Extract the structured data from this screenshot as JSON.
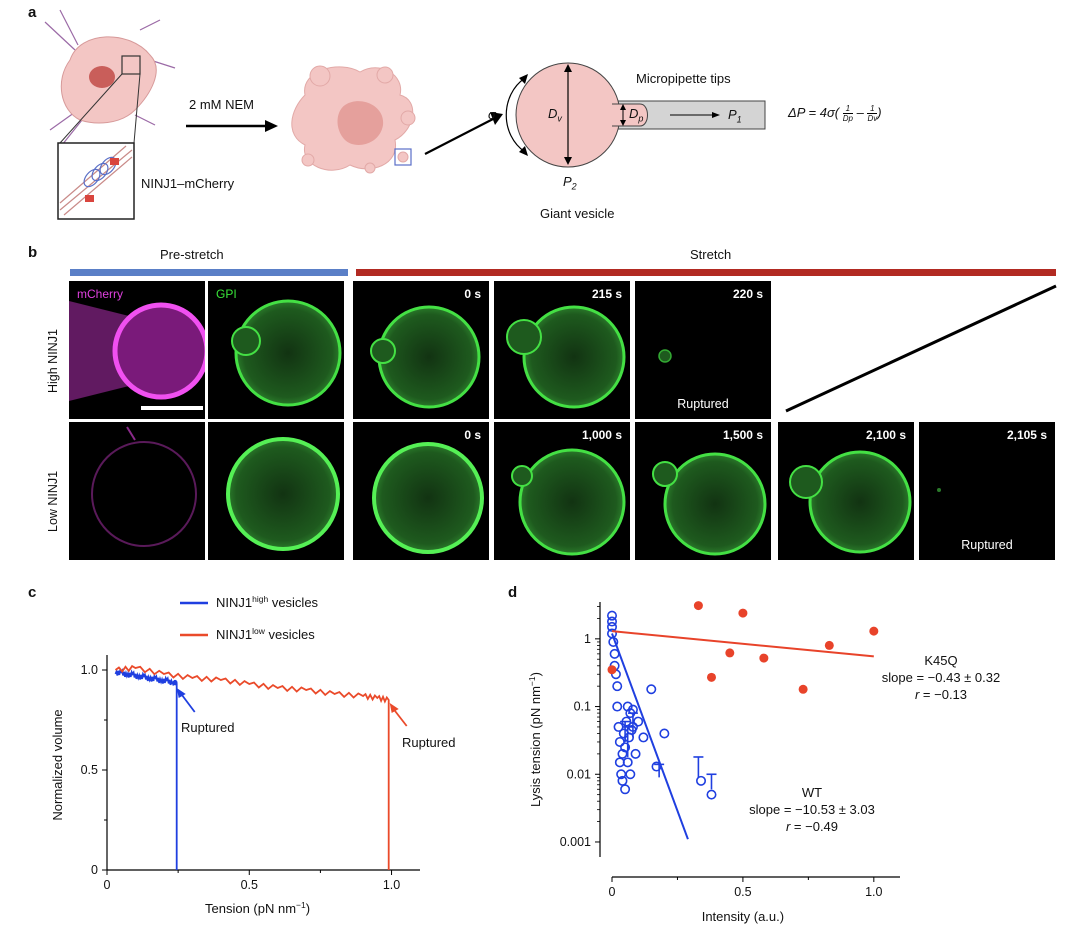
{
  "panels": {
    "a": "a",
    "b": "b",
    "c": "c",
    "d": "d"
  },
  "panel_a": {
    "treatment": "2 mM NEM",
    "protein_label": "NINJ1–mCherry",
    "micropipette_label": "Micropipette tips",
    "vesicle_label": "Giant vesicle",
    "sigma": "σ",
    "dv_main": "D",
    "dv_sub": "v",
    "dp_main": "D",
    "dp_sub": "p",
    "p1_main": "P",
    "p1_sub": "1",
    "p2_main": "P",
    "p2_sub": "2",
    "equation_lhs": "ΔP = 4σ(",
    "eq_num1": "1",
    "eq_den1": "Dp",
    "eq_minus": "–",
    "eq_num2": "1",
    "eq_den2": "Dv",
    "equation_rhs": ")"
  },
  "panel_b": {
    "prestretch_label": "Pre-stretch",
    "stretch_label": "Stretch",
    "row_high": "High NINJ1",
    "row_low": "Low NINJ1",
    "chan_mcherry": "mCherry",
    "chan_gpi": "GPI",
    "high_times": [
      "0 s",
      "215 s",
      "220 s"
    ],
    "low_times": [
      "0 s",
      "1,000 s",
      "1,500 s",
      "2,100 s",
      "2,105 s"
    ],
    "ruptured": "Ruptured",
    "colors": {
      "prestretch_bar": "#5a7fc7",
      "stretch_bar": "#b22a22",
      "mcherry": "#e040e0",
      "gpi": "#39e639"
    }
  },
  "chart_c": {
    "type": "line",
    "xlabel_main": "Tension (pN nm",
    "xlabel_sup": "−1",
    "xlabel_end": ")",
    "ylabel": "Normalized volume",
    "xlim": [
      0,
      1.1
    ],
    "ylim": [
      0,
      1.05
    ],
    "x_ticks": [
      "0",
      "0.5",
      "1.0"
    ],
    "y_ticks": [
      "0",
      "0.5",
      "1.0"
    ],
    "legend_placement": "top",
    "legend": [
      {
        "main": "NINJ1",
        "sup": "high",
        "rest": " vesicles",
        "color": "#1f3fe0"
      },
      {
        "main": "NINJ1",
        "sup": "low",
        "rest": " vesicles",
        "color": "#ea4a2a"
      }
    ],
    "annotations": [
      "Ruptured",
      "Ruptured"
    ],
    "series": [
      {
        "color": "#1f3fe0",
        "x": [
          0.03,
          0.05,
          0.07,
          0.09,
          0.11,
          0.13,
          0.15,
          0.17,
          0.19,
          0.21,
          0.23,
          0.24,
          0.245,
          0.245
        ],
        "y": [
          0.98,
          0.99,
          0.97,
          0.98,
          0.96,
          0.97,
          0.95,
          0.96,
          0.94,
          0.95,
          0.93,
          0.94,
          0.93,
          0.0
        ]
      },
      {
        "color": "#ea4a2a",
        "x": [
          0.03,
          0.1,
          0.2,
          0.3,
          0.4,
          0.5,
          0.6,
          0.7,
          0.8,
          0.9,
          0.95,
          0.99,
          0.99
        ],
        "y": [
          1.0,
          1.01,
          0.98,
          0.96,
          0.95,
          0.93,
          0.91,
          0.9,
          0.88,
          0.87,
          0.86,
          0.85,
          0.0
        ]
      }
    ]
  },
  "chart_d": {
    "type": "scatter",
    "xlabel": "Intensity (a.u.)",
    "ylabel_main": "Lysis tension (pN nm",
    "ylabel_sup": "−1",
    "ylabel_end": ")",
    "xlim": [
      0,
      1.1
    ],
    "ylim_log": [
      0.0006,
      3.5
    ],
    "y_scale": "log",
    "x_ticks": [
      "0",
      "0.5",
      "1.0"
    ],
    "y_ticks": [
      "0.001",
      "0.01",
      "0.1",
      "1"
    ],
    "k45q": {
      "label": "K45Q",
      "slope": "slope = −0.43 ± 0.32",
      "r_main": "r",
      "r_rest": " = −0.13",
      "color": "#e8432a",
      "x": [
        0.0,
        0.33,
        0.38,
        0.45,
        0.5,
        0.58,
        0.73,
        0.83,
        1.0
      ],
      "y": [
        0.35,
        3.1,
        0.27,
        0.62,
        2.4,
        0.52,
        0.18,
        0.8,
        1.3
      ],
      "fit": [
        [
          0.0,
          1.3
        ],
        [
          1.0,
          0.55
        ]
      ]
    },
    "wt": {
      "label": "WT",
      "slope": "slope = −10.53 ± 3.03",
      "r_main": "r",
      "r_rest": " = −0.49",
      "color": "#1f3fe0",
      "x": [
        0.0,
        0.0,
        0.0,
        0.0,
        0.005,
        0.01,
        0.01,
        0.015,
        0.02,
        0.02,
        0.025,
        0.03,
        0.03,
        0.035,
        0.04,
        0.04,
        0.045,
        0.05,
        0.05,
        0.055,
        0.06,
        0.06,
        0.065,
        0.07,
        0.07,
        0.075,
        0.08,
        0.08,
        0.09,
        0.1,
        0.12,
        0.15,
        0.17,
        0.2,
        0.34,
        0.38
      ],
      "y": [
        2.2,
        1.8,
        1.5,
        1.2,
        0.9,
        0.6,
        0.4,
        0.3,
        0.2,
        0.1,
        0.05,
        0.03,
        0.015,
        0.01,
        0.008,
        0.02,
        0.04,
        0.006,
        0.025,
        0.06,
        0.1,
        0.015,
        0.035,
        0.08,
        0.01,
        0.045,
        0.09,
        0.05,
        0.02,
        0.06,
        0.035,
        0.18,
        0.013,
        0.04,
        0.008,
        0.005
      ],
      "errorbars": [
        [
          0.05,
          0.03,
          0.06
        ],
        [
          0.08,
          0.035,
          0.08
        ],
        [
          0.06,
          0.018,
          0.05
        ],
        [
          0.18,
          0.009,
          0.014
        ],
        [
          0.33,
          0.009,
          0.018
        ],
        [
          0.38,
          0.006,
          0.01
        ]
      ],
      "fit": [
        [
          0.0,
          1.2
        ],
        [
          0.29,
          0.0011
        ]
      ]
    }
  }
}
